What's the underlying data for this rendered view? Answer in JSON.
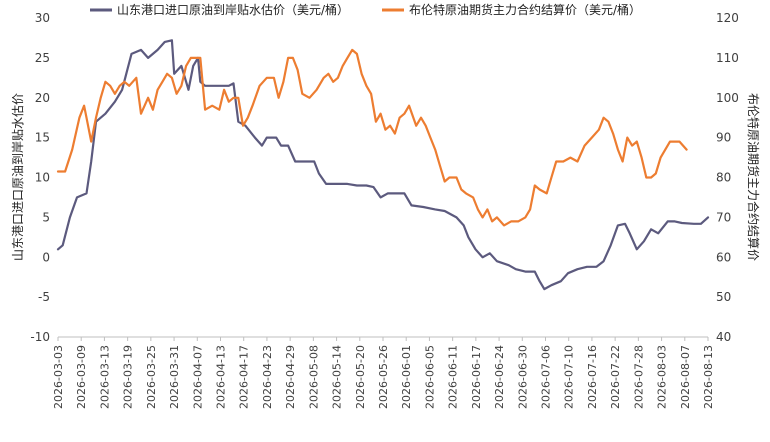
{
  "chart_data": {
    "type": "line",
    "legend_position": "top",
    "grid": false,
    "y_left": {
      "label": "山东港口进口原油到岸贴水估价",
      "ylim": [
        -10,
        30
      ],
      "ticks": [
        -10,
        -5,
        0,
        5,
        10,
        15,
        20,
        25,
        30
      ]
    },
    "y_right": {
      "label": "布伦特原油期货主力合约结算价",
      "ylim": [
        40,
        120
      ],
      "ticks": [
        40,
        50,
        60,
        70,
        80,
        90,
        100,
        110,
        120
      ]
    },
    "x_tick_labels": [
      "2026-03-03",
      "2026-03-09",
      "2026-03-13",
      "2026-03-19",
      "2026-03-25",
      "2026-03-31",
      "2026-04-07",
      "2026-04-13",
      "2026-04-17",
      "2026-04-23",
      "2026-04-29",
      "2026-05-08",
      "2026-05-14",
      "2026-05-20",
      "2026-05-26",
      "2026-06-01",
      "2026-06-05",
      "2026-06-11",
      "2026-06-17",
      "2026-06-24",
      "2026-06-30",
      "2026-07-06",
      "2026-07-10",
      "2026-07-16",
      "2026-07-22",
      "2026-07-28",
      "2026-08-03",
      "2026-08-07",
      "2026-08-13"
    ],
    "series": [
      {
        "name": "山东港口进口原油到岸贴水估价（美元/桶）",
        "axis": "left",
        "color": "#5c5a7e",
        "points": [
          [
            0,
            1
          ],
          [
            2,
            1.5
          ],
          [
            5,
            5
          ],
          [
            8,
            7.5
          ],
          [
            12,
            8
          ],
          [
            14,
            12
          ],
          [
            16,
            17
          ],
          [
            20,
            18
          ],
          [
            24,
            19.5
          ],
          [
            27,
            21
          ],
          [
            31,
            25.5
          ],
          [
            35,
            26
          ],
          [
            38,
            25
          ],
          [
            42,
            26
          ],
          [
            45,
            27
          ],
          [
            48,
            27.2
          ],
          [
            49,
            23
          ],
          [
            52,
            24
          ],
          [
            55,
            21
          ],
          [
            57,
            24
          ],
          [
            59,
            25
          ],
          [
            60,
            22
          ],
          [
            62,
            21.5
          ],
          [
            66,
            21.5
          ],
          [
            69,
            21.5
          ],
          [
            72,
            21.5
          ],
          [
            74,
            21.8
          ],
          [
            76,
            17
          ],
          [
            79,
            16.5
          ],
          [
            83,
            15
          ],
          [
            86,
            14
          ],
          [
            88,
            15
          ],
          [
            92,
            15
          ],
          [
            94,
            14
          ],
          [
            97,
            14
          ],
          [
            100,
            12
          ],
          [
            104,
            12
          ],
          [
            108,
            12
          ],
          [
            110,
            10.5
          ],
          [
            113,
            9.2
          ],
          [
            117,
            9.2
          ],
          [
            122,
            9.2
          ],
          [
            126,
            9
          ],
          [
            130,
            9
          ],
          [
            133,
            8.8
          ],
          [
            136,
            7.5
          ],
          [
            139,
            8
          ],
          [
            144,
            8
          ],
          [
            146,
            8
          ],
          [
            149,
            6.5
          ],
          [
            154,
            6.3
          ],
          [
            159,
            6
          ],
          [
            163,
            5.8
          ],
          [
            168,
            5
          ],
          [
            171,
            4
          ],
          [
            173,
            2.5
          ],
          [
            176,
            1
          ],
          [
            179,
            0
          ],
          [
            182,
            0.5
          ],
          [
            185,
            -0.5
          ],
          [
            190,
            -1
          ],
          [
            193,
            -1.5
          ],
          [
            197,
            -1.8
          ],
          [
            201,
            -1.8
          ],
          [
            203,
            -3
          ],
          [
            205,
            -4
          ],
          [
            208,
            -3.5
          ],
          [
            212,
            -3
          ],
          [
            215,
            -2
          ],
          [
            219,
            -1.5
          ],
          [
            223,
            -1.2
          ],
          [
            227,
            -1.2
          ],
          [
            230,
            -0.5
          ],
          [
            233,
            1.5
          ],
          [
            236,
            4
          ],
          [
            239,
            4.2
          ],
          [
            241,
            3
          ],
          [
            244,
            1
          ],
          [
            247,
            2
          ],
          [
            250,
            3.5
          ],
          [
            253,
            3
          ],
          [
            257,
            4.5
          ],
          [
            260,
            4.5
          ],
          [
            263,
            4.3
          ],
          [
            268,
            4.2
          ],
          [
            271,
            4.2
          ],
          [
            274,
            5
          ]
        ]
      },
      {
        "name": "布伦特原油期货主力合约结算价（美元/桶）",
        "axis": "right",
        "color": "#ed7d31",
        "points": [
          [
            0,
            81.5
          ],
          [
            3,
            81.5
          ],
          [
            6,
            87
          ],
          [
            9,
            95
          ],
          [
            11,
            98
          ],
          [
            12,
            95
          ],
          [
            14,
            89
          ],
          [
            16,
            95
          ],
          [
            18,
            100
          ],
          [
            20,
            104
          ],
          [
            22,
            103
          ],
          [
            24,
            101
          ],
          [
            26,
            103
          ],
          [
            28,
            104
          ],
          [
            30,
            103
          ],
          [
            33,
            105
          ],
          [
            35,
            96
          ],
          [
            38,
            100
          ],
          [
            40,
            97
          ],
          [
            42,
            102
          ],
          [
            44,
            104
          ],
          [
            46,
            106
          ],
          [
            48,
            105
          ],
          [
            50,
            101
          ],
          [
            52,
            103
          ],
          [
            54,
            108
          ],
          [
            56,
            110
          ],
          [
            60,
            110
          ],
          [
            62,
            97
          ],
          [
            65,
            98
          ],
          [
            68,
            97
          ],
          [
            70,
            102
          ],
          [
            72,
            99
          ],
          [
            74,
            100
          ],
          [
            76,
            100
          ],
          [
            78,
            93
          ],
          [
            80,
            95
          ],
          [
            82,
            98
          ],
          [
            85,
            103
          ],
          [
            88,
            105
          ],
          [
            91,
            105
          ],
          [
            93,
            100
          ],
          [
            95,
            104
          ],
          [
            97,
            110
          ],
          [
            99,
            110
          ],
          [
            101,
            107
          ],
          [
            103,
            101
          ],
          [
            106,
            100
          ],
          [
            109,
            102
          ],
          [
            112,
            105
          ],
          [
            114,
            106
          ],
          [
            116,
            104
          ],
          [
            118,
            105
          ],
          [
            120,
            108
          ],
          [
            122,
            110
          ],
          [
            124,
            112
          ],
          [
            126,
            111
          ],
          [
            128,
            106
          ],
          [
            130,
            103
          ],
          [
            132,
            101
          ],
          [
            134,
            94
          ],
          [
            136,
            96
          ],
          [
            138,
            92
          ],
          [
            140,
            93
          ],
          [
            142,
            91
          ],
          [
            144,
            95
          ],
          [
            146,
            96
          ],
          [
            148,
            98
          ],
          [
            151,
            93
          ],
          [
            153,
            95
          ],
          [
            155,
            93
          ],
          [
            157,
            90
          ],
          [
            159,
            87
          ],
          [
            161,
            83
          ],
          [
            163,
            79
          ],
          [
            165,
            80
          ],
          [
            168,
            80
          ],
          [
            170,
            77
          ],
          [
            172,
            76
          ],
          [
            175,
            75
          ],
          [
            177,
            72
          ],
          [
            179,
            70
          ],
          [
            181,
            72
          ],
          [
            183,
            69
          ],
          [
            185,
            70
          ],
          [
            188,
            68
          ],
          [
            191,
            69
          ],
          [
            194,
            69
          ],
          [
            197,
            70
          ],
          [
            199,
            72
          ],
          [
            201,
            78
          ],
          [
            203,
            77
          ],
          [
            206,
            76
          ],
          [
            208,
            80
          ],
          [
            210,
            84
          ],
          [
            213,
            84
          ],
          [
            216,
            85
          ],
          [
            219,
            84
          ],
          [
            222,
            88
          ],
          [
            225,
            90
          ],
          [
            228,
            92
          ],
          [
            230,
            95
          ],
          [
            232,
            94
          ],
          [
            234,
            91
          ],
          [
            236,
            87
          ],
          [
            238,
            84
          ],
          [
            240,
            90
          ],
          [
            242,
            88
          ],
          [
            244,
            89
          ],
          [
            246,
            85
          ],
          [
            248,
            80
          ],
          [
            250,
            80
          ],
          [
            252,
            81
          ],
          [
            254,
            85
          ],
          [
            256,
            87
          ],
          [
            258,
            89
          ],
          [
            262,
            89
          ],
          [
            265,
            87
          ]
        ]
      }
    ]
  }
}
